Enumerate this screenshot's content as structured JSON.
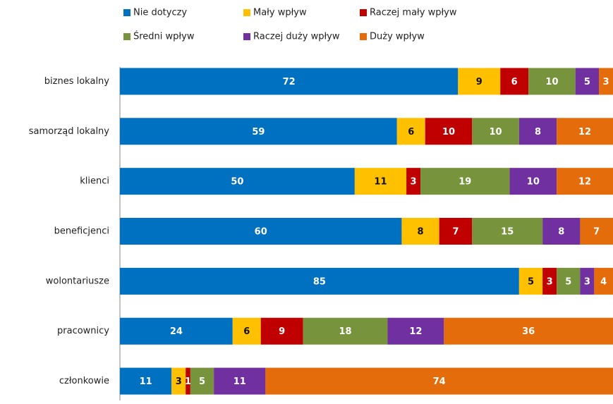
{
  "chart_data": {
    "type": "stacked_barh",
    "categories": [
      "biznes lokalny",
      "samorząd lokalny",
      "klienci",
      "beneficjenci",
      "wolontariusze",
      "pracownicy",
      "członkowie"
    ],
    "series": [
      {
        "name": "Nie dotyczy",
        "color": "#0070c0",
        "values": [
          72,
          59,
          50,
          60,
          85,
          24,
          11
        ]
      },
      {
        "name": "Mały wpływ",
        "color": "#ffc000",
        "values": [
          9,
          6,
          11,
          8,
          5,
          6,
          3
        ]
      },
      {
        "name": "Raczej mały wpływ",
        "color": "#c00000",
        "values": [
          6,
          10,
          3,
          7,
          3,
          9,
          1
        ]
      },
      {
        "name": "Średni wpływ",
        "color": "#77933c",
        "values": [
          10,
          10,
          19,
          15,
          5,
          18,
          5
        ]
      },
      {
        "name": "Raczej duży wpływ",
        "color": "#7030a0",
        "values": [
          5,
          8,
          10,
          8,
          3,
          12,
          11
        ]
      },
      {
        "name": "Duży wpływ",
        "color": "#e46c0a",
        "values": [
          3,
          12,
          12,
          7,
          4,
          36,
          74
        ]
      }
    ],
    "xlim": [
      0,
      105
    ]
  }
}
